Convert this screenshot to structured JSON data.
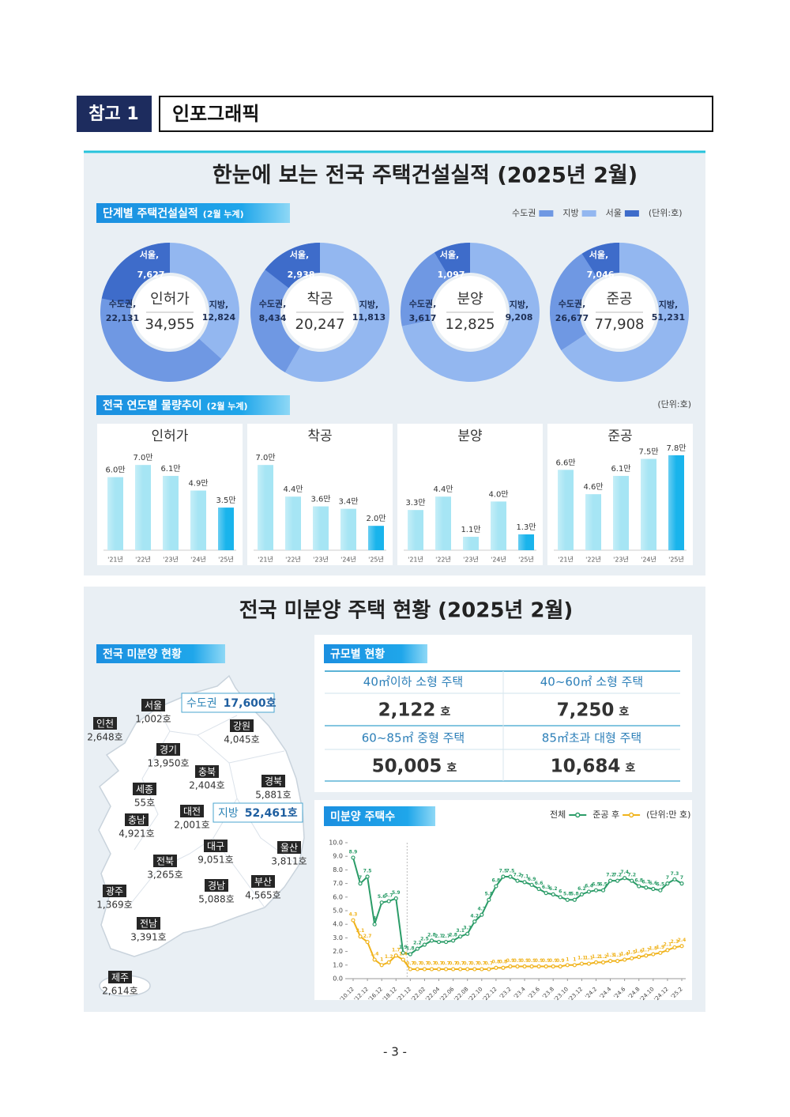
{
  "header": {
    "badge": "참고 1",
    "title": "인포그래픽"
  },
  "section1": {
    "title": "한눈에 보는 전국 주택건설실적 (2025년 2월)",
    "tag1": "단계별 주택건설실적",
    "tag1_note": "(2월 누계)",
    "legend": [
      {
        "name": "수도권",
        "color": "#6f98e3"
      },
      {
        "name": "지방",
        "color": "#93b7f0"
      },
      {
        "name": "서울",
        "color": "#3e6cca"
      }
    ],
    "unit1": "(단위:호)",
    "tag2": "전국 연도별 물량추이",
    "tag2_note": "(2월 누계)",
    "unit2": "(단위:호)"
  },
  "section2": {
    "title": "전국 미분양 주택 현황 (2025년 2월)",
    "map_tag": "전국 미분양 현황",
    "metro": {
      "name": "수도권",
      "count": "17,600호"
    },
    "nonmetro": {
      "name": "지방",
      "count": "52,461호"
    },
    "regions": [
      {
        "name": "서울",
        "count": "1,002호"
      },
      {
        "name": "인천",
        "count": "2,648호"
      },
      {
        "name": "경기",
        "count": "13,950호"
      },
      {
        "name": "강원",
        "count": "4,045호"
      },
      {
        "name": "충북",
        "count": "2,404호"
      },
      {
        "name": "경북",
        "count": "5,881호"
      },
      {
        "name": "세종",
        "count": "55호"
      },
      {
        "name": "대전",
        "count": "2,001호"
      },
      {
        "name": "충남",
        "count": "4,921호"
      },
      {
        "name": "대구",
        "count": "9,051호"
      },
      {
        "name": "울산",
        "count": "3,811호"
      },
      {
        "name": "전북",
        "count": "3,265호"
      },
      {
        "name": "경남",
        "count": "5,088호"
      },
      {
        "name": "부산",
        "count": "4,565호"
      },
      {
        "name": "광주",
        "count": "1,369호"
      },
      {
        "name": "전남",
        "count": "3,391호"
      },
      {
        "name": "제주",
        "count": "2,614호"
      }
    ],
    "size_tag": "규모별 현황",
    "size_table": [
      {
        "label": "40㎡이하 소형 주택",
        "value": "2,122",
        "unit": "호"
      },
      {
        "label": "40~60㎡ 소형 주택",
        "value": "7,250",
        "unit": "호"
      },
      {
        "label": "60~85㎡ 중형 주택",
        "value": "50,005",
        "unit": "호"
      },
      {
        "label": "85㎡초과 대형 주택",
        "value": "10,684",
        "unit": "호"
      }
    ],
    "chart_tag": "미분양 주택수"
  },
  "chart_data": [
    {
      "type": "pie",
      "title": "인허가",
      "labels": [
        "수도권,",
        "지방,",
        "서울,"
      ],
      "values": [
        22131,
        12824,
        7627
      ],
      "value_labels": [
        "22,131",
        "12,824",
        "7,627"
      ],
      "colors": [
        "#6f98e3",
        "#93b7f0",
        "#3e6cca"
      ],
      "total": 34955,
      "total_label": "34,955"
    },
    {
      "type": "pie",
      "title": "착공",
      "labels": [
        "수도권,",
        "지방,",
        "서울,"
      ],
      "values": [
        8434,
        11813,
        2938
      ],
      "value_labels": [
        "8,434",
        "11,813",
        "2,938"
      ],
      "colors": [
        "#6f98e3",
        "#93b7f0",
        "#3e6cca"
      ],
      "total": 20247,
      "total_label": "20,247"
    },
    {
      "type": "pie",
      "title": "분양",
      "labels": [
        "수도권,",
        "지방,",
        "서울,"
      ],
      "values": [
        3617,
        9208,
        1097
      ],
      "value_labels": [
        "3,617",
        "9,208",
        "1,097"
      ],
      "colors": [
        "#6f98e3",
        "#93b7f0",
        "#3e6cca"
      ],
      "total": 12825,
      "total_label": "12,825"
    },
    {
      "type": "pie",
      "title": "준공",
      "labels": [
        "수도권,",
        "지방,",
        "서울,"
      ],
      "values": [
        26677,
        51231,
        7046
      ],
      "value_labels": [
        "26,677",
        "51,231",
        "7,046"
      ],
      "colors": [
        "#6f98e3",
        "#93b7f0",
        "#3e6cca"
      ],
      "total": 77908,
      "total_label": "77,908"
    },
    {
      "type": "bar",
      "title": "인허가",
      "categories": [
        "'21년",
        "'22년",
        "'23년",
        "'24년",
        "'25년"
      ],
      "values": [
        6.0,
        7.0,
        6.1,
        4.9,
        3.5
      ],
      "value_labels": [
        "6.0만",
        "7.0만",
        "6.1만",
        "4.9만",
        "3.5만"
      ],
      "colors": [
        "#a6e5f4",
        "#a6e5f4",
        "#a6e5f4",
        "#a6e5f4",
        "#19b4ec"
      ]
    },
    {
      "type": "bar",
      "title": "착공",
      "categories": [
        "'21년",
        "'22년",
        "'23년",
        "'24년",
        "'25년"
      ],
      "values": [
        7.0,
        4.4,
        3.6,
        3.4,
        2.0
      ],
      "value_labels": [
        "7.0만",
        "4.4만",
        "3.6만",
        "3.4만",
        "2.0만"
      ],
      "colors": [
        "#a6e5f4",
        "#a6e5f4",
        "#a6e5f4",
        "#a6e5f4",
        "#19b4ec"
      ]
    },
    {
      "type": "bar",
      "title": "분양",
      "categories": [
        "'21년",
        "'22년",
        "'23년",
        "'24년",
        "'25년"
      ],
      "values": [
        3.3,
        4.4,
        1.1,
        4.0,
        1.3
      ],
      "value_labels": [
        "3.3만",
        "4.4만",
        "1.1만",
        "4.0만",
        "1.3만"
      ],
      "colors": [
        "#a6e5f4",
        "#a6e5f4",
        "#a6e5f4",
        "#a6e5f4",
        "#19b4ec"
      ]
    },
    {
      "type": "bar",
      "title": "준공",
      "categories": [
        "'21년",
        "'22년",
        "'23년",
        "'24년",
        "'25년"
      ],
      "values": [
        6.6,
        4.6,
        6.1,
        7.5,
        7.8
      ],
      "value_labels": [
        "6.6만",
        "4.6만",
        "6.1만",
        "7.5만",
        "7.8만"
      ],
      "colors": [
        "#a6e5f4",
        "#a6e5f4",
        "#a6e5f4",
        "#a6e5f4",
        "#19b4ec"
      ]
    },
    {
      "type": "line",
      "categories": [
        "'10.12",
        null,
        "'12.12",
        null,
        "'16.12",
        null,
        "'18.12",
        null,
        "'21.12",
        null,
        "'22.02",
        null,
        "'22.04",
        null,
        "'22.06",
        null,
        "'22.08",
        null,
        "'22.10",
        null,
        "'22.12",
        null,
        "'23.2",
        null,
        "'23.4",
        null,
        "'23.6",
        null,
        "'23.8",
        null,
        "'23.10",
        null,
        "'23.12",
        null,
        "'24.2",
        null,
        "'24.4",
        null,
        "'24.6",
        null,
        "'24.8",
        null,
        "'24.10",
        null,
        "'24.12",
        null,
        "'25.2"
      ],
      "series": [
        {
          "name": "전체",
          "color": "#2b9c68",
          "values": [
            8.9,
            7.0,
            7.5,
            4.0,
            5.6,
            5.7,
            5.9,
            1.9,
            1.8,
            2.2,
            2.5,
            2.8,
            2.7,
            2.7,
            2.8,
            3.1,
            3.3,
            4.2,
            4.7,
            5.8,
            6.8,
            7.5,
            7.5,
            7.2,
            7.1,
            6.9,
            6.6,
            6.3,
            6.2,
            6.0,
            5.8,
            5.8,
            6.2,
            6.4,
            6.5,
            6.5,
            7.2,
            7.2,
            7.4,
            7.2,
            6.8,
            6.7,
            6.6,
            6.5,
            7.0,
            7.3,
            7.0
          ]
        },
        {
          "name": "준공 후",
          "color": "#f0b31c",
          "values": [
            4.3,
            3.1,
            2.7,
            1.4,
            1.0,
            1.2,
            1.7,
            1.4,
            0.7,
            0.7,
            0.7,
            0.7,
            0.7,
            0.7,
            0.7,
            0.7,
            0.7,
            0.7,
            0.7,
            0.7,
            0.8,
            0.8,
            0.9,
            0.9,
            0.9,
            0.9,
            0.9,
            0.9,
            0.9,
            0.9,
            1.0,
            1.0,
            1.1,
            1.1,
            1.2,
            1.2,
            1.3,
            1.3,
            1.4,
            1.5,
            1.6,
            1.7,
            1.8,
            1.9,
            2.1,
            2.3,
            2.4
          ]
        }
      ],
      "unit": "(단위:만 호)",
      "ylim": [
        0,
        10
      ],
      "yticks": [
        {
          "value": 0,
          "label": "0.0"
        },
        {
          "value": 1,
          "label": "1.0"
        },
        {
          "value": 2,
          "label": "2.0"
        },
        {
          "value": 3,
          "label": "3.0"
        },
        {
          "value": 4,
          "label": "4.0"
        },
        {
          "value": 5,
          "label": "5.0"
        },
        {
          "value": 6,
          "label": "6.0"
        },
        {
          "value": 7,
          "label": "7.0"
        },
        {
          "value": 8,
          "label": "8.0"
        },
        {
          "value": 9,
          "label": "9.0"
        },
        {
          "value": 10,
          "label": "10.0"
        }
      ]
    }
  ],
  "footer": "- 3 -"
}
